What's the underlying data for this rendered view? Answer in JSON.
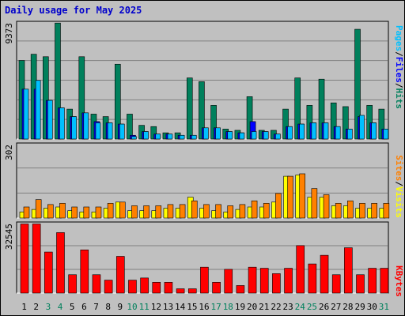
{
  "title": "Daily usage for May 2025",
  "colors": {
    "hits": "#00805C",
    "files": "#0000FF",
    "pages": "#00C0FF",
    "visits": "#FFFF00",
    "sites": "#FF8000",
    "kbytes": "#FF0000",
    "weekend_label": "#00805C",
    "weekday_label": "#000000",
    "grid": "#808080",
    "panel_bg": "#C0C0C0"
  },
  "legend": {
    "hits": "Hits",
    "files": "Files",
    "pages": "Pages",
    "visits": "Visits",
    "sites": "Sites",
    "kbytes": "KBytes",
    "sep": "/"
  },
  "chart_data": [
    {
      "type": "bar",
      "name": "Hits / Files / Pages",
      "ymax_label": "9373",
      "ylim": [
        0,
        9373
      ],
      "categories": [
        "1",
        "2",
        "3",
        "4",
        "5",
        "6",
        "7",
        "8",
        "9",
        "10",
        "11",
        "12",
        "13",
        "14",
        "15",
        "16",
        "17",
        "18",
        "19",
        "20",
        "21",
        "22",
        "23",
        "24",
        "25",
        "26",
        "27",
        "28",
        "29",
        "30",
        "31"
      ],
      "series": [
        {
          "name": "Hits",
          "values": [
            6300,
            6800,
            6600,
            9300,
            2400,
            6600,
            2000,
            1800,
            6000,
            2000,
            1100,
            1000,
            500,
            500,
            4900,
            4600,
            2700,
            800,
            700,
            3400,
            700,
            700,
            2400,
            4900,
            2700,
            4800,
            2900,
            2600,
            8800,
            2700,
            2400
          ]
        },
        {
          "name": "Files",
          "values": [
            4000,
            4000,
            3100,
            2500,
            1800,
            2100,
            1400,
            1300,
            1200,
            300,
            600,
            400,
            400,
            300,
            300,
            900,
            900,
            600,
            500,
            1400,
            600,
            400,
            1000,
            1200,
            1300,
            1300,
            1000,
            800,
            1800,
            1300,
            800
          ]
        },
        {
          "name": "Pages",
          "values": [
            4000,
            4700,
            3100,
            2500,
            1800,
            2100,
            1300,
            1300,
            1200,
            200,
            600,
            400,
            400,
            300,
            300,
            900,
            900,
            600,
            500,
            600,
            600,
            400,
            1000,
            1200,
            1300,
            1300,
            1000,
            800,
            1900,
            1300,
            800
          ]
        }
      ],
      "weekend_days": [
        "3",
        "4",
        "10",
        "11",
        "17",
        "18",
        "24",
        "25",
        "31"
      ]
    },
    {
      "type": "bar",
      "name": "Visits / Sites",
      "ymax_label": "302",
      "ylim": [
        0,
        302
      ],
      "categories": [
        "1",
        "2",
        "3",
        "4",
        "5",
        "6",
        "7",
        "8",
        "9",
        "10",
        "11",
        "12",
        "13",
        "14",
        "15",
        "16",
        "17",
        "18",
        "19",
        "20",
        "21",
        "22",
        "23",
        "24",
        "25",
        "26",
        "27",
        "28",
        "29",
        "30",
        "31"
      ],
      "series": [
        {
          "name": "Visits",
          "values": [
            25,
            35,
            40,
            45,
            30,
            25,
            25,
            40,
            65,
            30,
            30,
            30,
            40,
            40,
            85,
            40,
            30,
            25,
            35,
            45,
            45,
            65,
            170,
            175,
            85,
            85,
            50,
            50,
            40,
            40,
            40
          ]
        },
        {
          "name": "Sites",
          "values": [
            45,
            75,
            55,
            60,
            45,
            45,
            45,
            60,
            65,
            50,
            50,
            50,
            55,
            55,
            70,
            55,
            55,
            50,
            55,
            70,
            60,
            100,
            170,
            180,
            120,
            95,
            60,
            70,
            60,
            60,
            60
          ]
        }
      ],
      "weekend_days": [
        "3",
        "4",
        "10",
        "11",
        "17",
        "18",
        "24",
        "25",
        "31"
      ]
    },
    {
      "type": "bar",
      "name": "KBytes",
      "ymax_label": "32545",
      "ylim": [
        0,
        32545
      ],
      "categories": [
        "1",
        "2",
        "3",
        "4",
        "5",
        "6",
        "7",
        "8",
        "9",
        "10",
        "11",
        "12",
        "13",
        "14",
        "15",
        "16",
        "17",
        "18",
        "19",
        "20",
        "21",
        "22",
        "23",
        "24",
        "25",
        "26",
        "27",
        "28",
        "29",
        "30",
        "31"
      ],
      "series": [
        {
          "name": "KBytes",
          "values": [
            32000,
            32000,
            19000,
            28000,
            8500,
            20000,
            8500,
            6000,
            17000,
            6000,
            7000,
            5000,
            5000,
            2000,
            2000,
            12000,
            5000,
            11000,
            3500,
            12000,
            11500,
            9000,
            11500,
            22000,
            13500,
            17500,
            8500,
            21000,
            8500,
            11500,
            11500
          ]
        }
      ],
      "weekend_days": [
        "3",
        "4",
        "10",
        "11",
        "17",
        "18",
        "24",
        "25",
        "31"
      ]
    }
  ]
}
